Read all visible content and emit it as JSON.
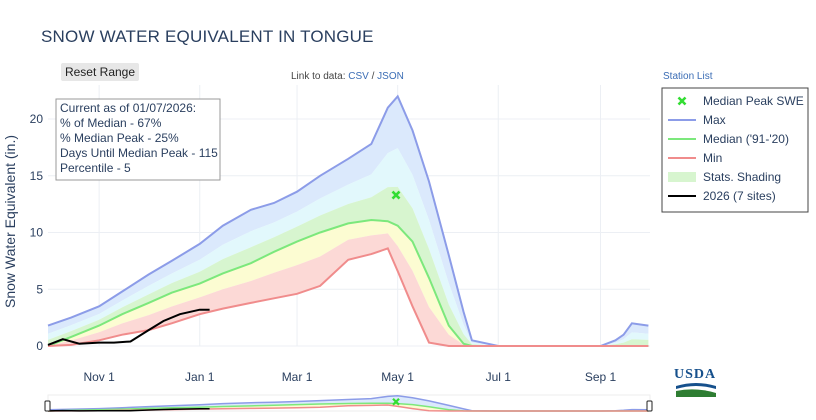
{
  "title": "SNOW WATER EQUIVALENT IN TONGUE",
  "reset_label": "Reset Range",
  "link_prefix": "Link to data:",
  "link_csv": "CSV",
  "link_sep": "/",
  "link_json": "JSON",
  "station_list": "Station List",
  "info": {
    "line1": "Current as of 01/07/2026:",
    "line2": "% of Median - 67%",
    "line3": "% Median Peak - 25%",
    "line4": "Days Until Median Peak - 115",
    "line5": "Percentile - 5"
  },
  "logo_text": "USDA",
  "colors": {
    "max": "#8c9ce8",
    "median": "#7ce87c",
    "min": "#f08c8c",
    "current": "#000000",
    "peak": "#33dd33",
    "band_outer": "#dbe9fc",
    "band_mid": "#e2f8fc",
    "band_green": "#d7f5cf",
    "band_yellow": "#fcfcd2",
    "band_red": "#fcd9d6"
  },
  "chart_data": {
    "type": "area",
    "ylabel": "Snow Water Equivalent (in.)",
    "xlabel": "",
    "ylim": [
      0,
      23
    ],
    "yticks": [
      "0",
      "5",
      "10",
      "15",
      "20"
    ],
    "xticks": [
      "Nov 1",
      "Jan 1",
      "Mar 1",
      "May 1",
      "Jul 1",
      "Sep 1"
    ],
    "legend_position": "right",
    "legend": [
      "Median Peak SWE",
      "Max",
      "Median ('91-'20)",
      "Min",
      "Stats. Shading",
      "2026 (7 sites)"
    ],
    "x": [
      "Oct 1",
      "Oct 15",
      "Nov 1",
      "Nov 15",
      "Dec 1",
      "Dec 15",
      "Jan 1",
      "Jan 15",
      "Feb 1",
      "Feb 15",
      "Mar 1",
      "Mar 15",
      "Apr 1",
      "Apr 15",
      "Apr 25",
      "May 1",
      "May 10",
      "May 20",
      "Jun 1",
      "Jun 10",
      "Jun 15",
      "Jul 1",
      "Jul 15",
      "Aug 1",
      "Aug 15",
      "Sep 1",
      "Sep 10",
      "Sep 15",
      "Sep 20",
      "Sep 30"
    ],
    "series": [
      {
        "name": "Max",
        "values": [
          1.8,
          2.5,
          3.5,
          4.8,
          6.3,
          7.5,
          9.0,
          10.6,
          12.0,
          12.6,
          13.6,
          15.0,
          16.5,
          17.8,
          21.0,
          22.0,
          19.0,
          14.5,
          8.0,
          3.0,
          0.5,
          0,
          0,
          0,
          0,
          0,
          0.5,
          1.0,
          2.0,
          1.8
        ]
      },
      {
        "name": "Median ('91-'20)",
        "values": [
          0,
          0.8,
          1.8,
          2.8,
          3.8,
          4.7,
          5.5,
          6.4,
          7.3,
          8.3,
          9.2,
          10.0,
          10.8,
          11.1,
          11.0,
          10.6,
          9.2,
          6.0,
          1.8,
          0.2,
          0,
          0,
          0,
          0,
          0,
          0,
          0,
          0,
          0,
          0
        ]
      },
      {
        "name": "Min",
        "values": [
          0,
          0.1,
          0.5,
          1.0,
          1.4,
          2.0,
          2.8,
          3.3,
          3.8,
          4.2,
          4.6,
          5.3,
          7.6,
          8.1,
          8.6,
          6.6,
          3.5,
          0.3,
          0,
          0,
          0,
          0,
          0,
          0,
          0,
          0,
          0,
          0,
          0,
          0
        ]
      }
    ],
    "current": {
      "name": "2026 (7 sites)",
      "x": [
        "Oct 1",
        "Oct 10",
        "Oct 20",
        "Nov 1",
        "Nov 10",
        "Nov 20",
        "Dec 1",
        "Dec 10",
        "Dec 20",
        "Jan 1",
        "Jan 7"
      ],
      "values": [
        0.1,
        0.6,
        0.2,
        0.3,
        0.3,
        0.4,
        1.4,
        2.2,
        2.8,
        3.2,
        3.2
      ]
    },
    "median_peak": {
      "x": "Apr 30",
      "value": 13.3
    }
  }
}
